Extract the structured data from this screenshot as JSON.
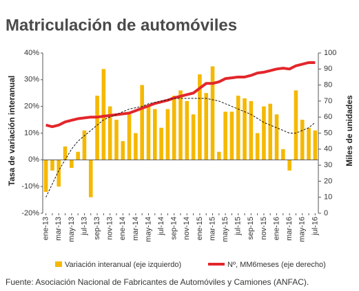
{
  "chart_data": {
    "type": "bar-line",
    "title": "Matriculación de automóviles",
    "y_label": "Tasa de variación interanual",
    "y2_label": "Miles de unidades",
    "source": "Fuente: Asociación Nacional de Fabricantes de Automóviles y Camiones (ANFAC).",
    "categories": [
      "ene-13",
      null,
      "mar-13",
      null,
      "may-13",
      null,
      "jul-13",
      null,
      "sep-13",
      null,
      "nov-13",
      null,
      "ene-14",
      null,
      "mar-14",
      null,
      "may-14",
      null,
      "jul-14",
      null,
      "sep-14",
      null,
      "nov-14",
      null,
      "ene-15",
      null,
      "mar-15",
      null,
      "may-15",
      null,
      "jul-15",
      null,
      "sep-15",
      null,
      "nov-15",
      null,
      "ene-16",
      null,
      "mar-16",
      null,
      "may-16",
      null,
      "jul-16"
    ],
    "ylim": [
      -20,
      40
    ],
    "yticks": [
      {
        "value": -20,
        "label": "-20%"
      },
      {
        "value": -10,
        "label": "-10%"
      },
      {
        "value": 0,
        "label": "0%"
      },
      {
        "value": 10,
        "label": "10%"
      },
      {
        "value": 20,
        "label": "20%"
      },
      {
        "value": 30,
        "label": "30%"
      },
      {
        "value": 40,
        "label": "40%"
      }
    ],
    "y2lim": [
      0,
      100
    ],
    "y2ticks": [
      0,
      10,
      20,
      30,
      40,
      50,
      60,
      70,
      80,
      90,
      100
    ],
    "series": [
      {
        "name": "Variación interanual (eje izquierdo)",
        "kind": "bar",
        "color": "#f5b800",
        "values": [
          -12,
          -4,
          -10,
          5,
          -3,
          3,
          11,
          -14,
          24,
          34,
          20,
          15,
          7,
          17,
          10,
          28,
          20,
          19,
          12,
          19,
          24,
          26,
          22,
          17,
          32,
          25,
          35,
          3,
          18,
          18,
          24,
          23,
          22,
          10,
          20,
          21,
          17,
          4,
          -4,
          26,
          15,
          12,
          11
        ]
      },
      {
        "name": "Nº, MM6meses (eje derecho)",
        "kind": "line",
        "axis": "y2",
        "color": "#e3262b",
        "values": [
          55,
          54,
          55,
          57,
          58,
          59,
          59.5,
          60,
          60,
          60.5,
          61,
          61.5,
          62,
          62.5,
          64,
          65.5,
          67,
          68.5,
          69.5,
          70.5,
          72,
          73,
          74,
          75,
          78,
          81,
          81,
          82,
          84,
          84.5,
          85,
          85,
          86,
          87.5,
          88,
          89,
          90,
          90.5,
          90,
          92,
          93,
          94,
          94
        ]
      },
      {
        "kind": "line",
        "dash": true,
        "color": "#111",
        "values": [
          -14,
          -9,
          -4,
          0,
          4,
          7,
          9,
          11,
          13,
          15,
          16,
          17,
          18,
          19,
          19.5,
          20,
          21,
          21.5,
          22,
          22.5,
          23,
          23,
          23,
          23,
          23,
          23,
          22.5,
          22,
          21,
          20,
          19,
          18,
          17,
          15.5,
          14,
          13,
          12,
          11,
          10,
          10,
          11,
          12,
          14
        ]
      }
    ]
  }
}
